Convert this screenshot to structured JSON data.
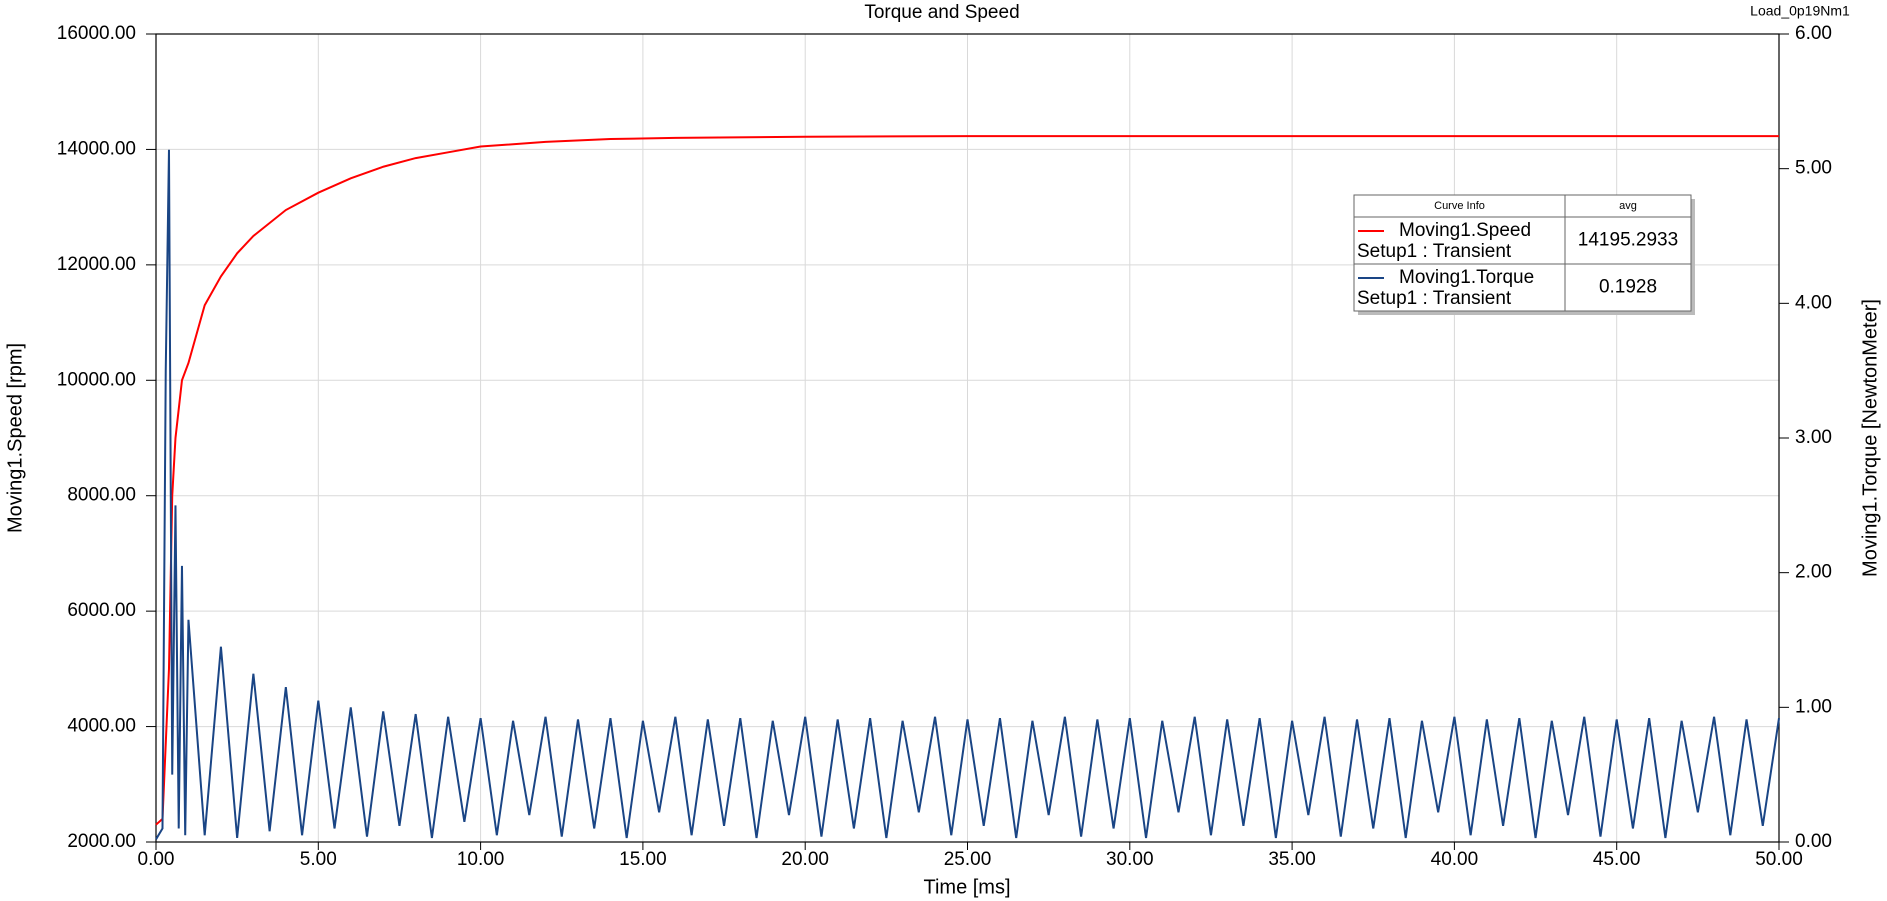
{
  "chart_data": {
    "type": "line",
    "title": "Torque and Speed",
    "corner_label": "Load_0p19Nm1",
    "xlabel": "Time [ms]",
    "ylabel": "Moving1.Speed [rpm]",
    "y2label": "Moving1.Torque [NewtonMeter]",
    "xlim": [
      0,
      50
    ],
    "xticks": [
      {
        "value": 0,
        "label": "0.00"
      },
      {
        "value": 5,
        "label": "5.00"
      },
      {
        "value": 10,
        "label": "10.00"
      },
      {
        "value": 15,
        "label": "15.00"
      },
      {
        "value": 20,
        "label": "20.00"
      },
      {
        "value": 25,
        "label": "25.00"
      },
      {
        "value": 30,
        "label": "30.00"
      },
      {
        "value": 35,
        "label": "35.00"
      },
      {
        "value": 40,
        "label": "40.00"
      },
      {
        "value": 45,
        "label": "45.00"
      },
      {
        "value": 50,
        "label": "50.00"
      }
    ],
    "ylim": [
      2000,
      16000
    ],
    "yticks": [
      {
        "value": 2000,
        "label": "2000.00"
      },
      {
        "value": 4000,
        "label": "4000.00"
      },
      {
        "value": 6000,
        "label": "6000.00"
      },
      {
        "value": 8000,
        "label": "8000.00"
      },
      {
        "value": 10000,
        "label": "10000.00"
      },
      {
        "value": 12000,
        "label": "12000.00"
      },
      {
        "value": 14000,
        "label": "14000.00"
      },
      {
        "value": 16000,
        "label": "16000.00"
      }
    ],
    "y2lim": [
      0,
      6
    ],
    "y2ticks": [
      {
        "value": 0,
        "label": "0.00"
      },
      {
        "value": 1,
        "label": "1.00"
      },
      {
        "value": 2,
        "label": "2.00"
      },
      {
        "value": 3,
        "label": "3.00"
      },
      {
        "value": 4,
        "label": "4.00"
      },
      {
        "value": 5,
        "label": "5.00"
      },
      {
        "value": 6,
        "label": "6.00"
      }
    ],
    "grid": true,
    "legend": {
      "header": [
        "Curve Info",
        "avg"
      ]
    },
    "series": [
      {
        "name": "Moving1.Speed",
        "setup": "Setup1 : Transient",
        "avg": 14195.2933,
        "color": "#ff0000",
        "axis": "y",
        "x": [
          0,
          0.2,
          0.4,
          0.5,
          0.6,
          0.8,
          1,
          1.5,
          2,
          2.5,
          3,
          4,
          5,
          6,
          7,
          8,
          9,
          10,
          12,
          14,
          16,
          20,
          25,
          30,
          35,
          40,
          45,
          50
        ],
        "values": [
          2300,
          2400,
          5000,
          8000,
          9000,
          10000,
          10300,
          11300,
          11800,
          12200,
          12500,
          12950,
          13250,
          13500,
          13700,
          13850,
          13950,
          14050,
          14130,
          14180,
          14200,
          14220,
          14230,
          14230,
          14230,
          14230,
          14230,
          14230
        ]
      },
      {
        "name": "Moving1.Torque",
        "setup": "Setup1 : Transient",
        "avg": 0.1928,
        "color": "#1a4585",
        "axis": "y2",
        "x": [
          0,
          0.2,
          0.3,
          0.4,
          0.5,
          0.6,
          0.7,
          0.8,
          0.9,
          1,
          1.5,
          2,
          2.5,
          3,
          3.5,
          4,
          4.5,
          5,
          5.5,
          6,
          6.5,
          7,
          7.5,
          8,
          8.5,
          9,
          9.5,
          10,
          10.5,
          11,
          11.5,
          12,
          12.5,
          13,
          13.5,
          14,
          14.5,
          15,
          15.5,
          16,
          16.5,
          17,
          17.5,
          18,
          18.5,
          19,
          19.5,
          20,
          20.5,
          21,
          21.5,
          22,
          22.5,
          23,
          23.5,
          24,
          24.5,
          25,
          25.5,
          26,
          26.5,
          27,
          27.5,
          28,
          28.5,
          29,
          29.5,
          30,
          30.5,
          31,
          31.5,
          32,
          32.5,
          33,
          33.5,
          34,
          34.5,
          35,
          35.5,
          36,
          36.5,
          37,
          37.5,
          38,
          38.5,
          39,
          39.5,
          40,
          40.5,
          41,
          41.5,
          42,
          42.5,
          43,
          43.5,
          44,
          44.5,
          45,
          45.5,
          46,
          46.5,
          47,
          47.5,
          48,
          48.5,
          49,
          49.5,
          50
        ],
        "values": [
          0.02,
          0.1,
          3.5,
          5.14,
          0.5,
          2.5,
          0.1,
          2.05,
          0.05,
          1.65,
          0.05,
          1.45,
          0.03,
          1.25,
          0.08,
          1.15,
          0.05,
          1.05,
          0.1,
          1.0,
          0.04,
          0.97,
          0.12,
          0.95,
          0.03,
          0.93,
          0.15,
          0.92,
          0.05,
          0.9,
          0.2,
          0.93,
          0.04,
          0.91,
          0.1,
          0.92,
          0.03,
          0.9,
          0.22,
          0.93,
          0.05,
          0.91,
          0.12,
          0.92,
          0.03,
          0.9,
          0.2,
          0.93,
          0.04,
          0.91,
          0.1,
          0.92,
          0.03,
          0.9,
          0.22,
          0.93,
          0.05,
          0.91,
          0.12,
          0.92,
          0.03,
          0.9,
          0.2,
          0.93,
          0.04,
          0.91,
          0.1,
          0.92,
          0.03,
          0.9,
          0.22,
          0.93,
          0.05,
          0.91,
          0.12,
          0.92,
          0.03,
          0.9,
          0.2,
          0.93,
          0.04,
          0.91,
          0.1,
          0.92,
          0.03,
          0.9,
          0.22,
          0.93,
          0.05,
          0.91,
          0.12,
          0.92,
          0.03,
          0.9,
          0.2,
          0.93,
          0.04,
          0.91,
          0.1,
          0.92,
          0.03,
          0.9,
          0.22,
          0.93,
          0.05,
          0.91,
          0.12,
          0.92
        ]
      }
    ]
  }
}
